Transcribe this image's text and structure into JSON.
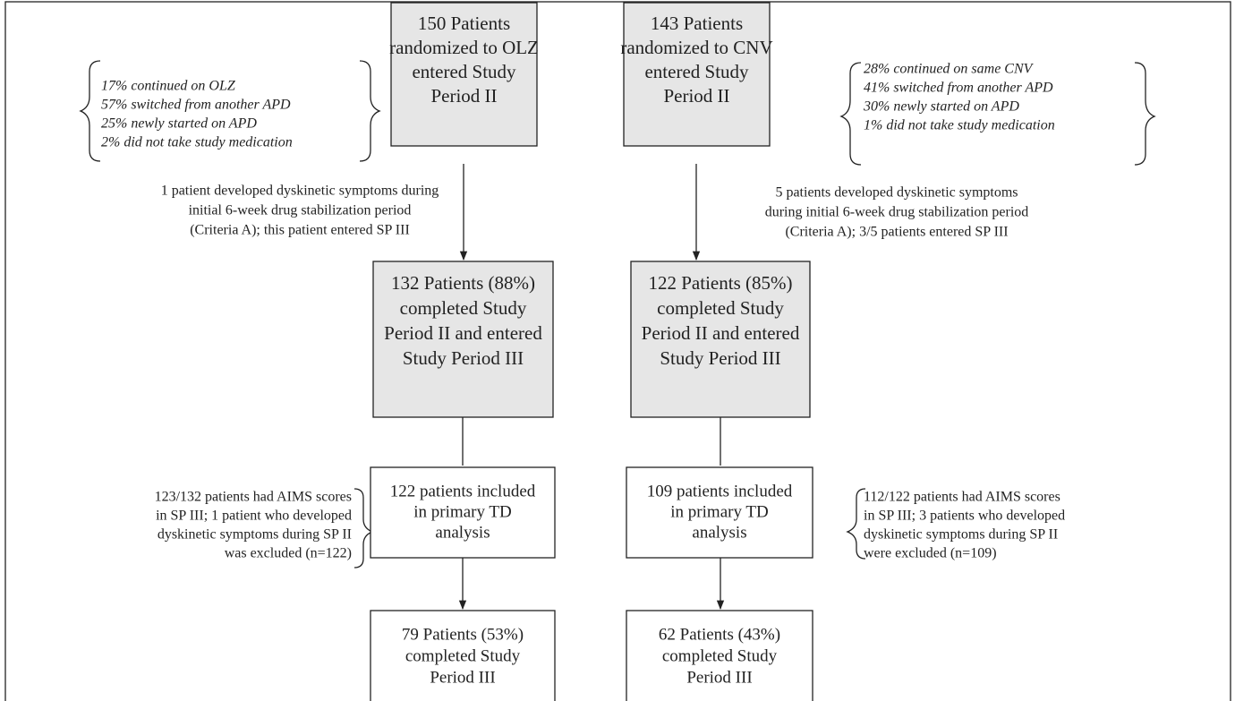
{
  "nodes": [
    {
      "lines": [
        "150 Patients",
        "randomized to OLZ",
        "entered Study",
        "Period II"
      ]
    },
    {
      "lines": [
        "143 Patients",
        "randomized to CNV",
        "entered Study",
        "Period II"
      ]
    },
    {
      "lines": [
        "132 Patients (88%)",
        "completed Study",
        "Period II and entered",
        "Study Period III"
      ]
    },
    {
      "lines": [
        "122 Patients (85%)",
        "completed Study",
        "Period II and entered",
        "Study Period III"
      ]
    },
    {
      "lines": [
        "122 patients included",
        "in primary TD",
        "analysis"
      ]
    },
    {
      "lines": [
        "109 patients included",
        "in primary TD",
        "analysis"
      ]
    },
    {
      "lines": [
        "79 Patients (53%)",
        "completed Study",
        "Period III"
      ]
    },
    {
      "lines": [
        "62 Patients (43%)",
        "completed Study",
        "Period III"
      ]
    }
  ],
  "notes": [
    {
      "lines": [
        "17% continued on OLZ",
        "57% switched from another APD",
        "25% newly started on APD",
        "2% did not take study medication"
      ]
    },
    {
      "lines": [
        "28% continued on same CNV",
        "41% switched from another APD",
        "30% newly started on APD",
        "1% did not take study medication"
      ]
    },
    {
      "lines": [
        "1 patient developed dyskinetic symptoms during",
        "initial 6-week drug stabilization period",
        "(Criteria A); this patient entered SP III"
      ]
    },
    {
      "lines": [
        "5 patients developed dyskinetic symptoms",
        "during initial 6-week drug stabilization period",
        "(Criteria A); 3/5 patients entered SP III"
      ]
    },
    {
      "lines": [
        "123/132 patients had AIMS scores",
        "in SP III; 1 patient who developed",
        "dyskinetic symptoms during SP II",
        "was excluded (n=122)"
      ]
    },
    {
      "lines": [
        "112/122 patients had AIMS scores",
        "in SP III; 3 patients who developed",
        "dyskinetic symptoms during SP II",
        "were excluded (n=109)"
      ]
    }
  ]
}
